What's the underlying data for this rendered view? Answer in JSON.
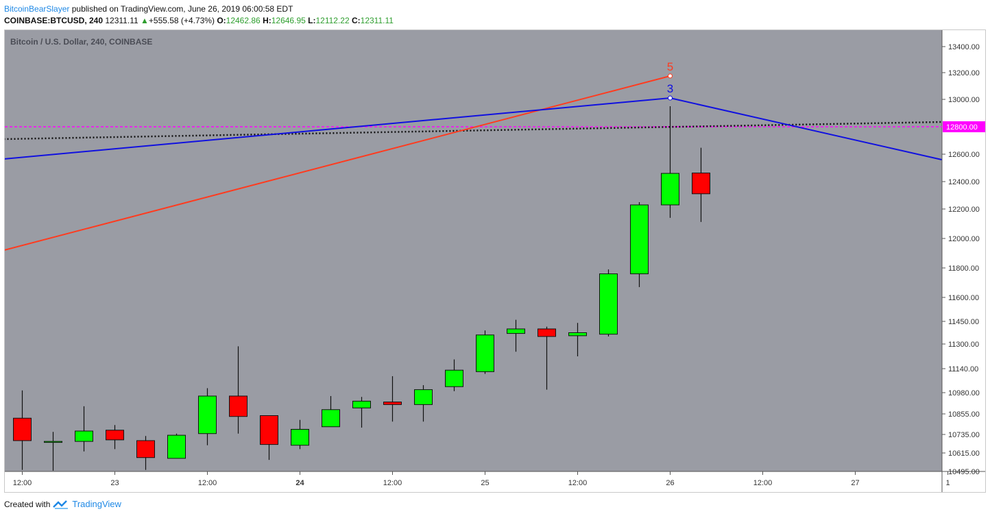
{
  "header": {
    "author": "BitcoinBearSlayer",
    "published": "published on TradingView.com, June 26, 2019 06:00:58 EDT"
  },
  "quote": {
    "symbol": "COINBASE:BTCUSD, 240",
    "last": "12311.11",
    "change": "+555.58 (+4.73%)",
    "o_label": "O:",
    "o": "12462.86",
    "h_label": "H:",
    "h": "12646.95",
    "l_label": "L:",
    "l": "12112.22",
    "c_label": "C:",
    "c": "12311.11"
  },
  "footer": {
    "created_with": "Created with",
    "brand": "TradingView"
  },
  "chart_data": {
    "type": "candlestick",
    "title": "Bitcoin / U.S. Dollar, 240, COINBASE",
    "background": "#9a9ca4",
    "up_color": "#00ff00",
    "down_color": "#ff0000",
    "y_ticks": [
      {
        "label": "13400.00",
        "v": 13400
      },
      {
        "label": "13200.00",
        "v": 13200
      },
      {
        "label": "13000.00",
        "v": 13000
      },
      {
        "label": "12600.00",
        "v": 12600
      },
      {
        "label": "12400.00",
        "v": 12400
      },
      {
        "label": "12200.00",
        "v": 12200
      },
      {
        "label": "12000.00",
        "v": 12000
      },
      {
        "label": "11800.00",
        "v": 11800
      },
      {
        "label": "11600.00",
        "v": 11600
      },
      {
        "label": "11450.00",
        "v": 11450
      },
      {
        "label": "11300.00",
        "v": 11300
      },
      {
        "label": "11140.00",
        "v": 11140
      },
      {
        "label": "10980.00",
        "v": 10980
      },
      {
        "label": "10855.00",
        "v": 10855
      },
      {
        "label": "10735.00",
        "v": 10735
      },
      {
        "label": "10615.00",
        "v": 10615
      },
      {
        "label": "10495.00",
        "v": 10495
      }
    ],
    "x_ticks": [
      {
        "label": "12:00",
        "i": 0
      },
      {
        "label": "23",
        "i": 3
      },
      {
        "label": "12:00",
        "i": 6
      },
      {
        "label": "24",
        "i": 9,
        "bold": true
      },
      {
        "label": "12:00",
        "i": 12
      },
      {
        "label": "25",
        "i": 15
      },
      {
        "label": "12:00",
        "i": 18
      },
      {
        "label": "26",
        "i": 21
      },
      {
        "label": "12:00",
        "i": 24
      },
      {
        "label": "27",
        "i": 27
      },
      {
        "label": "1",
        "i": 30
      }
    ],
    "candles": [
      {
        "o": 10830,
        "h": 10995,
        "l": 10505,
        "c": 10695
      },
      {
        "o": 10690,
        "h": 10750,
        "l": 10500,
        "c": 10690
      },
      {
        "o": 10690,
        "h": 10900,
        "l": 10625,
        "c": 10755
      },
      {
        "o": 10760,
        "h": 10790,
        "l": 10640,
        "c": 10700
      },
      {
        "o": 10695,
        "h": 10725,
        "l": 10505,
        "c": 10585
      },
      {
        "o": 10580,
        "h": 10740,
        "l": 10580,
        "c": 10730
      },
      {
        "o": 10740,
        "h": 11010,
        "l": 10665,
        "c": 10960
      },
      {
        "o": 10960,
        "h": 11285,
        "l": 10740,
        "c": 10840
      },
      {
        "o": 10845,
        "h": 10845,
        "l": 10570,
        "c": 10670
      },
      {
        "o": 10665,
        "h": 10820,
        "l": 10640,
        "c": 10765
      },
      {
        "o": 10780,
        "h": 10960,
        "l": 10780,
        "c": 10880
      },
      {
        "o": 10890,
        "h": 10955,
        "l": 10775,
        "c": 10930
      },
      {
        "o": 10925,
        "h": 11090,
        "l": 10810,
        "c": 10910
      },
      {
        "o": 10910,
        "h": 11030,
        "l": 10810,
        "c": 11000
      },
      {
        "o": 11020,
        "h": 11200,
        "l": 10990,
        "c": 11130
      },
      {
        "o": 11120,
        "h": 11390,
        "l": 11105,
        "c": 11360
      },
      {
        "o": 11370,
        "h": 11460,
        "l": 11250,
        "c": 11400
      },
      {
        "o": 11400,
        "h": 11415,
        "l": 11000,
        "c": 11350
      },
      {
        "o": 11355,
        "h": 11440,
        "l": 11220,
        "c": 11375
      },
      {
        "o": 11365,
        "h": 11790,
        "l": 11350,
        "c": 11760
      },
      {
        "o": 11760,
        "h": 12250,
        "l": 11670,
        "c": 12230
      },
      {
        "o": 12230,
        "h": 12950,
        "l": 12140,
        "c": 12460
      },
      {
        "o": 12462.86,
        "h": 12646.95,
        "l": 12112.22,
        "c": 12311.11
      }
    ],
    "horizontal_line": {
      "value": 12800,
      "label": "12800.00",
      "color": "#ff00ff"
    },
    "trendlines": [
      {
        "name": "",
        "color": "#ff3b1f",
        "points": [
          {
            "i": -0.6,
            "v": 11920
          },
          {
            "i": 21,
            "v": 13175
          }
        ],
        "label": "5"
      },
      {
        "name": "",
        "color": "#1010e0",
        "points": [
          {
            "i": -0.6,
            "v": 12565
          },
          {
            "i": 21,
            "v": 13010
          },
          {
            "i": 29.8,
            "v": 12560
          }
        ],
        "label": "3"
      }
    ],
    "dotted_line": {
      "color": "#111111",
      "points": [
        {
          "i": -0.6,
          "v": 12710
        },
        {
          "i": 29.8,
          "v": 12835
        }
      ]
    }
  }
}
